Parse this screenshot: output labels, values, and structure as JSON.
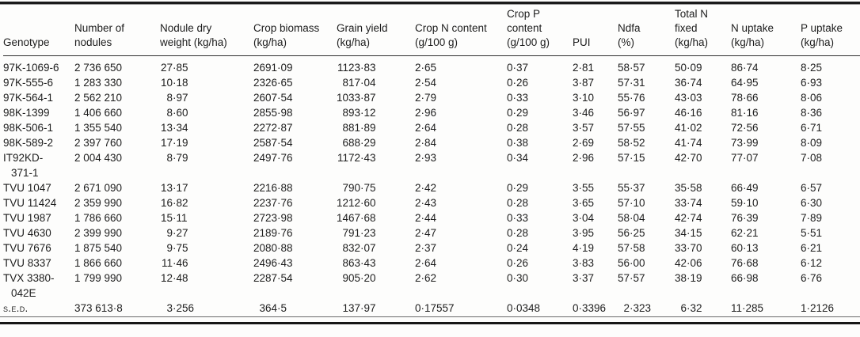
{
  "table": {
    "columns": [
      {
        "label": "Genotype"
      },
      {
        "label": "Number of\nnodules"
      },
      {
        "label": "Nodule dry\nweight (kg/ha)"
      },
      {
        "label": "Crop biomass\n(kg/ha)"
      },
      {
        "label": "Grain yield\n(kg/ha)"
      },
      {
        "label": "Crop N content\n(g/100 g)"
      },
      {
        "label": "Crop P\ncontent\n(g/100 g)"
      },
      {
        "label": "PUI"
      },
      {
        "label": "Ndfa\n(%)"
      },
      {
        "label": "Total N\nfixed\n(kg/ha)"
      },
      {
        "label": "N uptake\n(kg/ha)"
      },
      {
        "label": "P uptake\n(kg/ha)"
      }
    ],
    "rows": [
      [
        "97K-1069-6",
        "2 736 650",
        "27·85",
        "2691·09",
        "1123·83",
        "2·65",
        "0·37",
        "2·81",
        "58·57",
        "50·09",
        "86·74",
        "8·25"
      ],
      [
        "97K-555-6",
        "1 283 330",
        "10·18",
        "2326·65",
        "817·04",
        "2·54",
        "0·26",
        "3·87",
        "57·31",
        "36·74",
        "64·95",
        "6·93"
      ],
      [
        "97K-564-1",
        "2 562 210",
        "8·97",
        "2607·54",
        "1033·87",
        "2·79",
        "0·33",
        "3·10",
        "55·76",
        "43·03",
        "78·66",
        "8·06"
      ],
      [
        "98K-1399",
        "1 406 660",
        "8·60",
        "2855·98",
        "893·12",
        "2·96",
        "0·29",
        "3·46",
        "56·97",
        "46·16",
        "81·16",
        "8·36"
      ],
      [
        "98K-506-1",
        "1 355 540",
        "13·34",
        "2272·87",
        "881·89",
        "2·64",
        "0·28",
        "3·57",
        "57·55",
        "41·02",
        "72·56",
        "6·71"
      ],
      [
        "98K-589-2",
        "2 397 760",
        "17·19",
        "2587·54",
        "688·29",
        "2·84",
        "0·38",
        "2·69",
        "58·52",
        "41·74",
        "73·99",
        "8·09"
      ],
      [
        "IT92KD-\n371-1",
        "2 004 430",
        "8·79",
        "2497·76",
        "1172·43",
        "2·93",
        "0·34",
        "2·96",
        "57·15",
        "42·70",
        "77·07",
        "7·08"
      ],
      [
        "TVU 1047",
        "2 671 090",
        "13·17",
        "2216·88",
        "790·75",
        "2·42",
        "0·29",
        "3·55",
        "55·37",
        "35·58",
        "66·49",
        "6·57"
      ],
      [
        "TVU 11424",
        "2 359 990",
        "16·82",
        "2237·76",
        "1212·60",
        "2·43",
        "0·28",
        "3·65",
        "57·10",
        "33·74",
        "59·10",
        "6·30"
      ],
      [
        "TVU 1987",
        "1 786 660",
        "15·11",
        "2723·98",
        "1467·68",
        "2·44",
        "0·33",
        "3·04",
        "58·04",
        "42·74",
        "76·39",
        "7·89"
      ],
      [
        "TVU 4630",
        "2 399 990",
        "9·27",
        "2189·76",
        "791·23",
        "2·47",
        "0·28",
        "3·95",
        "56·25",
        "34·15",
        "62·21",
        "5·51"
      ],
      [
        "TVU 7676",
        "1 875 540",
        "9·75",
        "2080·88",
        "832·07",
        "2·37",
        "0·24",
        "4·19",
        "57·58",
        "33·70",
        "60·13",
        "6·21"
      ],
      [
        "TVU 8337",
        "1 866 660",
        "11·46",
        "2496·43",
        "863·43",
        "2·64",
        "0·26",
        "3·83",
        "56·00",
        "42·06",
        "76·68",
        "6·12"
      ],
      [
        "TVX 3380-\n042E",
        "1 799 990",
        "12·48",
        "2287·54",
        "905·20",
        "2·62",
        "0·30",
        "3·37",
        "57·57",
        "38·19",
        "66·98",
        "6·76"
      ],
      [
        "s.e.d.",
        "373 613·8",
        "3·256",
        "364·5",
        "137·97",
        "0·17557",
        "0·0348",
        "0·3396",
        "2·323",
        "6·32",
        "11·285",
        "1·2126"
      ]
    ]
  },
  "colors": {
    "text": "#1d1d1d",
    "rule": "#1b1b1b",
    "background": "#fdfdfc"
  }
}
